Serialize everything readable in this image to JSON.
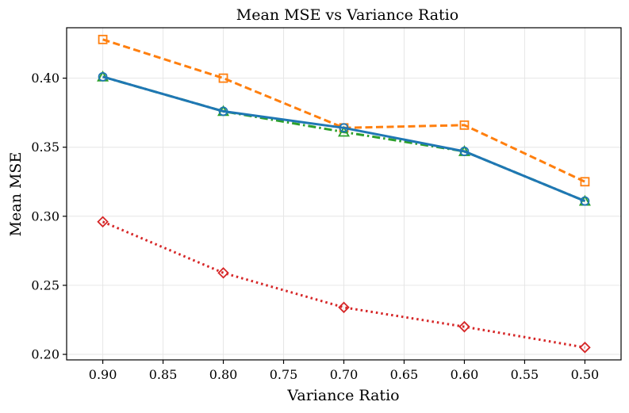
{
  "chart_data": {
    "type": "line",
    "title": "Mean MSE vs Variance Ratio",
    "xlabel": "Variance Ratio",
    "ylabel": "Mean MSE",
    "x": [
      0.9,
      0.8,
      0.7,
      0.6,
      0.5
    ],
    "xlim": [
      0.93,
      0.47
    ],
    "ylim": [
      0.196,
      0.4365
    ],
    "x_ticks": [
      0.9,
      0.85,
      0.8,
      0.75,
      0.7,
      0.65,
      0.6,
      0.55,
      0.5
    ],
    "x_tick_labels": [
      "0.90",
      "0.85",
      "0.80",
      "0.75",
      "0.70",
      "0.65",
      "0.60",
      "0.55",
      "0.50"
    ],
    "y_ticks": [
      0.2,
      0.25,
      0.3,
      0.35,
      0.4
    ],
    "y_tick_labels": [
      "0.20",
      "0.25",
      "0.30",
      "0.35",
      "0.40"
    ],
    "grid": true,
    "series": [
      {
        "name": "series-orange",
        "color": "#ff7f0e",
        "linestyle": "dashed",
        "marker": "square",
        "values": [
          0.428,
          0.4,
          0.364,
          0.366,
          0.325
        ]
      },
      {
        "name": "series-green",
        "color": "#2ca02c",
        "linestyle": "dashdot",
        "marker": "triangle",
        "values": [
          0.401,
          0.376,
          0.361,
          0.347,
          0.311
        ]
      },
      {
        "name": "series-blue",
        "color": "#1f77b4",
        "linestyle": "solid",
        "marker": "circle",
        "values": [
          0.401,
          0.376,
          0.364,
          0.347,
          0.311
        ]
      },
      {
        "name": "series-red",
        "color": "#d62728",
        "linestyle": "dotted",
        "marker": "diamond",
        "values": [
          0.296,
          0.259,
          0.234,
          0.22,
          0.205
        ]
      }
    ]
  }
}
